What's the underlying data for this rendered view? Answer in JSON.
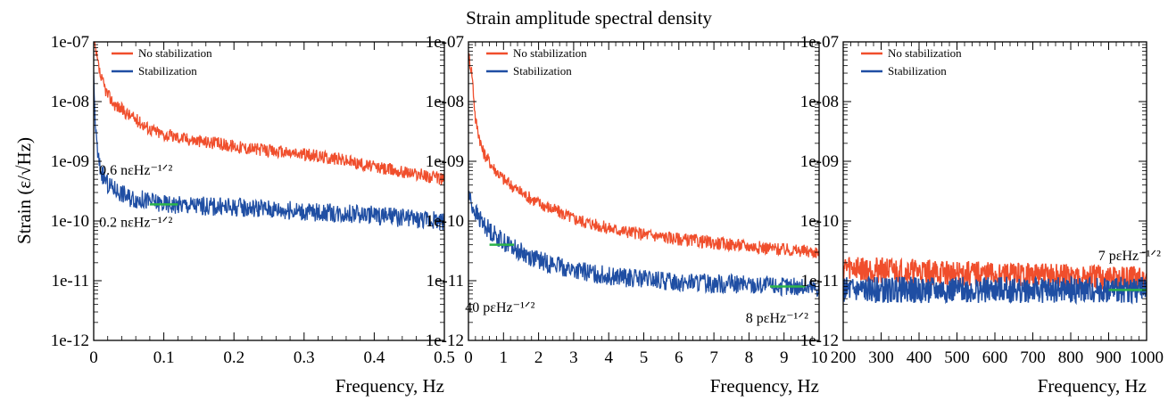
{
  "title": "Strain amplitude spectral density",
  "ylabel": "Strain (ε/√Hz)",
  "colors": {
    "no_stabilization": "#f04e2c",
    "stabilization": "#1f4ea3",
    "level_marker": "#2bb34a"
  },
  "chart_data": [
    {
      "type": "line",
      "panel": "left",
      "xlabel": "Frequency, Hz",
      "xlim": [
        0,
        0.5
      ],
      "x_ticks": [
        0,
        0.1,
        0.2,
        0.3,
        0.4,
        0.5
      ],
      "x_tick_labels": [
        "0",
        "0.1",
        "0.2",
        "0.3",
        "0.4",
        "0.5"
      ],
      "yscale": "log",
      "ylim": [
        1e-12,
        1e-07
      ],
      "y_tick_labels": [
        "1e-07",
        "1e-08",
        "1e-09",
        "1e-10",
        "1e-11",
        "1e-12"
      ],
      "legend": [
        "No stabilization",
        "Stabilization"
      ],
      "legend_position": "top-left",
      "series": [
        {
          "name": "No stabilization",
          "x": [
            0.0,
            0.005,
            0.01,
            0.02,
            0.03,
            0.05,
            0.08,
            0.1,
            0.15,
            0.2,
            0.25,
            0.3,
            0.35,
            0.4,
            0.45,
            0.5
          ],
          "y": [
            1e-07,
            5e-08,
            2.5e-08,
            1.3e-08,
            9e-09,
            6e-09,
            3.5e-09,
            2.8e-09,
            2.2e-09,
            1.8e-09,
            1.5e-09,
            1.3e-09,
            1.1e-09,
            8e-10,
            6.5e-10,
            5e-10
          ]
        },
        {
          "name": "Stabilization",
          "x": [
            0.0,
            0.003,
            0.006,
            0.01,
            0.02,
            0.05,
            0.1,
            0.15,
            0.2,
            0.25,
            0.3,
            0.35,
            0.4,
            0.45,
            0.5
          ],
          "y": [
            2e-08,
            3e-09,
            1.2e-09,
            7e-10,
            4e-10,
            2.5e-10,
            1.9e-10,
            1.8e-10,
            1.7e-10,
            1.6e-10,
            1.45e-10,
            1.35e-10,
            1.25e-10,
            1.1e-10,
            1e-10
          ]
        }
      ],
      "annotations": [
        {
          "text": "0.6 nεHz⁻¹ᐟ²",
          "x": 0.06,
          "y": 6e-10
        },
        {
          "text": "0.2 nεHz⁻¹ᐟ²",
          "x": 0.06,
          "y": 8e-11
        }
      ],
      "level_markers": [
        {
          "x": [
            0.08,
            0.12
          ],
          "y": 1.9e-10
        }
      ]
    },
    {
      "type": "line",
      "panel": "middle",
      "xlabel": "Frequency, Hz",
      "xlim": [
        0,
        10
      ],
      "x_ticks": [
        0,
        1,
        2,
        3,
        4,
        5,
        6,
        7,
        8,
        9,
        10
      ],
      "x_tick_labels": [
        "0",
        "1",
        "2",
        "3",
        "4",
        "5",
        "6",
        "7",
        "8",
        "9",
        "10"
      ],
      "yscale": "log",
      "ylim": [
        1e-12,
        1e-07
      ],
      "y_tick_labels": [
        "1e-07",
        "1e-08",
        "1e-09",
        "1e-10",
        "1e-11",
        "1e-12"
      ],
      "legend": [
        "No stabilization",
        "Stabilization"
      ],
      "legend_position": "top-left",
      "series": [
        {
          "name": "No stabilization",
          "x": [
            0.0,
            0.1,
            0.2,
            0.4,
            0.7,
            1.0,
            1.5,
            2.0,
            3.0,
            4.0,
            5.0,
            6.0,
            7.0,
            8.0,
            9.0,
            10.0
          ],
          "y": [
            6e-08,
            3e-08,
            5e-09,
            1.5e-09,
            8e-10,
            5e-10,
            3e-10,
            2e-10,
            1.1e-10,
            7.5e-11,
            6e-11,
            5e-11,
            4.3e-11,
            3.8e-11,
            3.3e-11,
            3e-11
          ]
        },
        {
          "name": "Stabilization",
          "x": [
            0.0,
            0.1,
            0.3,
            0.6,
            1.0,
            1.5,
            2.0,
            3.0,
            4.0,
            5.0,
            6.0,
            7.0,
            8.0,
            9.0,
            10.0
          ],
          "y": [
            3e-10,
            1.8e-10,
            1.1e-10,
            7e-11,
            4.5e-11,
            3e-11,
            2.2e-11,
            1.5e-11,
            1.2e-11,
            1.05e-11,
            9.5e-12,
            9e-12,
            8.5e-12,
            8e-12,
            7.5e-12
          ]
        }
      ],
      "annotations": [
        {
          "text": "40 pεHz⁻¹ᐟ²",
          "x": 0.9,
          "y": 3e-12
        },
        {
          "text": "8 pεHz⁻¹ᐟ²",
          "x": 8.8,
          "y": 2e-12
        }
      ],
      "level_markers": [
        {
          "x": [
            0.6,
            1.3
          ],
          "y": 4e-11
        },
        {
          "x": [
            8.6,
            9.6
          ],
          "y": 8e-12
        }
      ]
    },
    {
      "type": "line",
      "panel": "right",
      "xlabel": "Frequency, Hz",
      "xlim": [
        200,
        1000
      ],
      "x_ticks": [
        200,
        300,
        400,
        500,
        600,
        700,
        800,
        900,
        1000
      ],
      "x_tick_labels": [
        "200",
        "300",
        "400",
        "500",
        "600",
        "700",
        "800",
        "900",
        "1000"
      ],
      "yscale": "log",
      "ylim": [
        1e-12,
        1e-07
      ],
      "y_tick_labels": [
        "1e-07",
        "1e-08",
        "1e-09",
        "1e-10",
        "1e-11",
        "1e-12"
      ],
      "legend": [
        "No stabilization",
        "Stabilization"
      ],
      "legend_position": "top-left",
      "series": [
        {
          "name": "No stabilization",
          "x": [
            200,
            300,
            400,
            500,
            600,
            700,
            800,
            900,
            1000
          ],
          "y": [
            1.7e-11,
            1.5e-11,
            1.4e-11,
            1.3e-11,
            1.25e-11,
            1.2e-11,
            1.15e-11,
            1.1e-11,
            1.05e-11
          ]
        },
        {
          "name": "Stabilization",
          "x": [
            200,
            300,
            400,
            500,
            600,
            700,
            800,
            900,
            1000
          ],
          "y": [
            7e-12,
            7e-12,
            7e-12,
            7e-12,
            7e-12,
            7e-12,
            7e-12,
            7e-12,
            7e-12
          ]
        }
      ],
      "annotations": [
        {
          "text": "7 pεHz⁻¹ᐟ²",
          "x": 955,
          "y": 2.2e-11
        }
      ],
      "level_markers": [
        {
          "x": [
            900,
            1000
          ],
          "y": 7e-12
        }
      ]
    }
  ]
}
